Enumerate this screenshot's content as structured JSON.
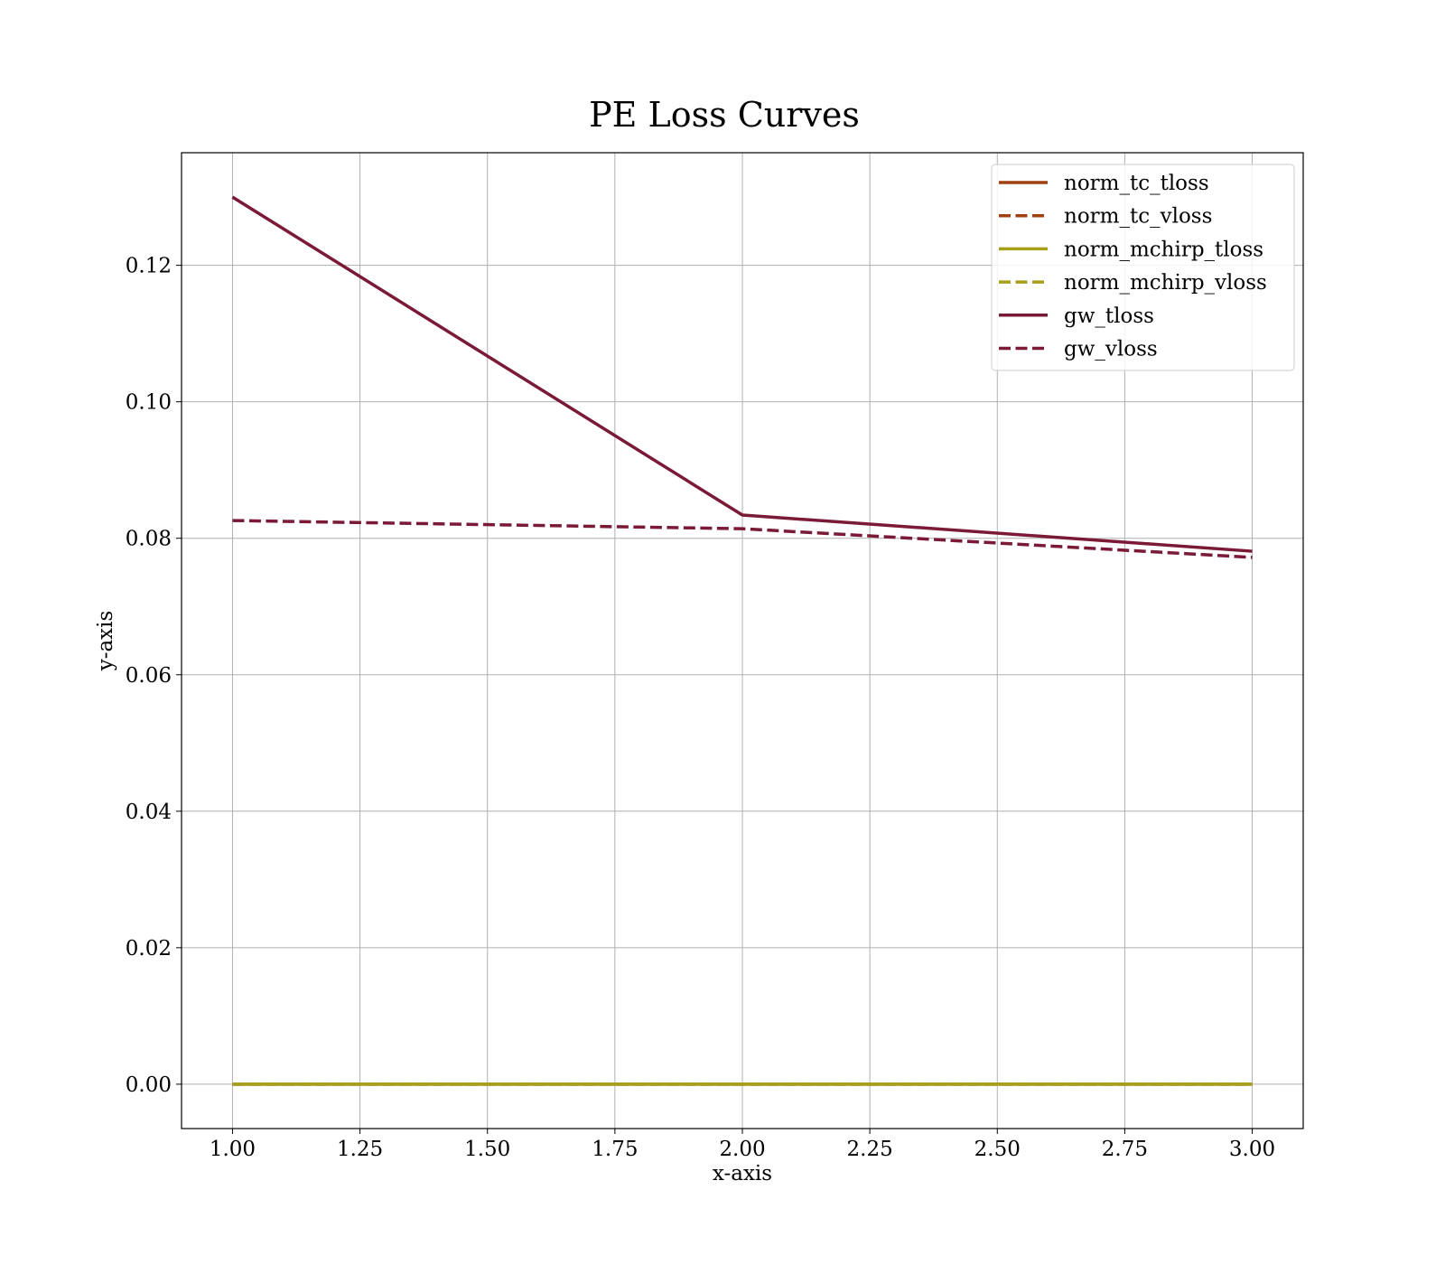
{
  "chart_data": {
    "type": "line",
    "title": "PE Loss Curves",
    "xlabel": "x-axis",
    "ylabel": "y-axis",
    "xlim": [
      0.9,
      3.1
    ],
    "ylim": [
      -0.0065,
      0.1365
    ],
    "xticks": [
      1.0,
      1.25,
      1.5,
      1.75,
      2.0,
      2.25,
      2.5,
      2.75,
      3.0
    ],
    "xtick_labels": [
      "1.00",
      "1.25",
      "1.50",
      "1.75",
      "2.00",
      "2.25",
      "2.50",
      "2.75",
      "3.00"
    ],
    "yticks": [
      0.0,
      0.02,
      0.04,
      0.06,
      0.08,
      0.1,
      0.12
    ],
    "ytick_labels": [
      "0.00",
      "0.02",
      "0.04",
      "0.06",
      "0.08",
      "0.10",
      "0.12"
    ],
    "grid": true,
    "legend_position": "top-right",
    "x": [
      1,
      2,
      3
    ],
    "series": [
      {
        "name": "norm_tc_tloss",
        "values": [
          0.0,
          0.0,
          0.0
        ],
        "color": "#a0400f",
        "dash": "solid"
      },
      {
        "name": "norm_tc_vloss",
        "values": [
          0.0,
          0.0,
          0.0
        ],
        "color": "#a0400f",
        "dash": "dashed"
      },
      {
        "name": "norm_mchirp_tloss",
        "values": [
          0.0,
          0.0,
          0.0
        ],
        "color": "#a89f1a",
        "dash": "solid"
      },
      {
        "name": "norm_mchirp_vloss",
        "values": [
          0.0,
          0.0,
          0.0
        ],
        "color": "#a89f1a",
        "dash": "dashed"
      },
      {
        "name": "gw_tloss",
        "values": [
          0.13,
          0.0834,
          0.0781
        ],
        "color": "#7b1a37",
        "dash": "solid"
      },
      {
        "name": "gw_vloss",
        "values": [
          0.0826,
          0.0814,
          0.0772
        ],
        "color": "#7b1a37",
        "dash": "dashed"
      }
    ]
  }
}
